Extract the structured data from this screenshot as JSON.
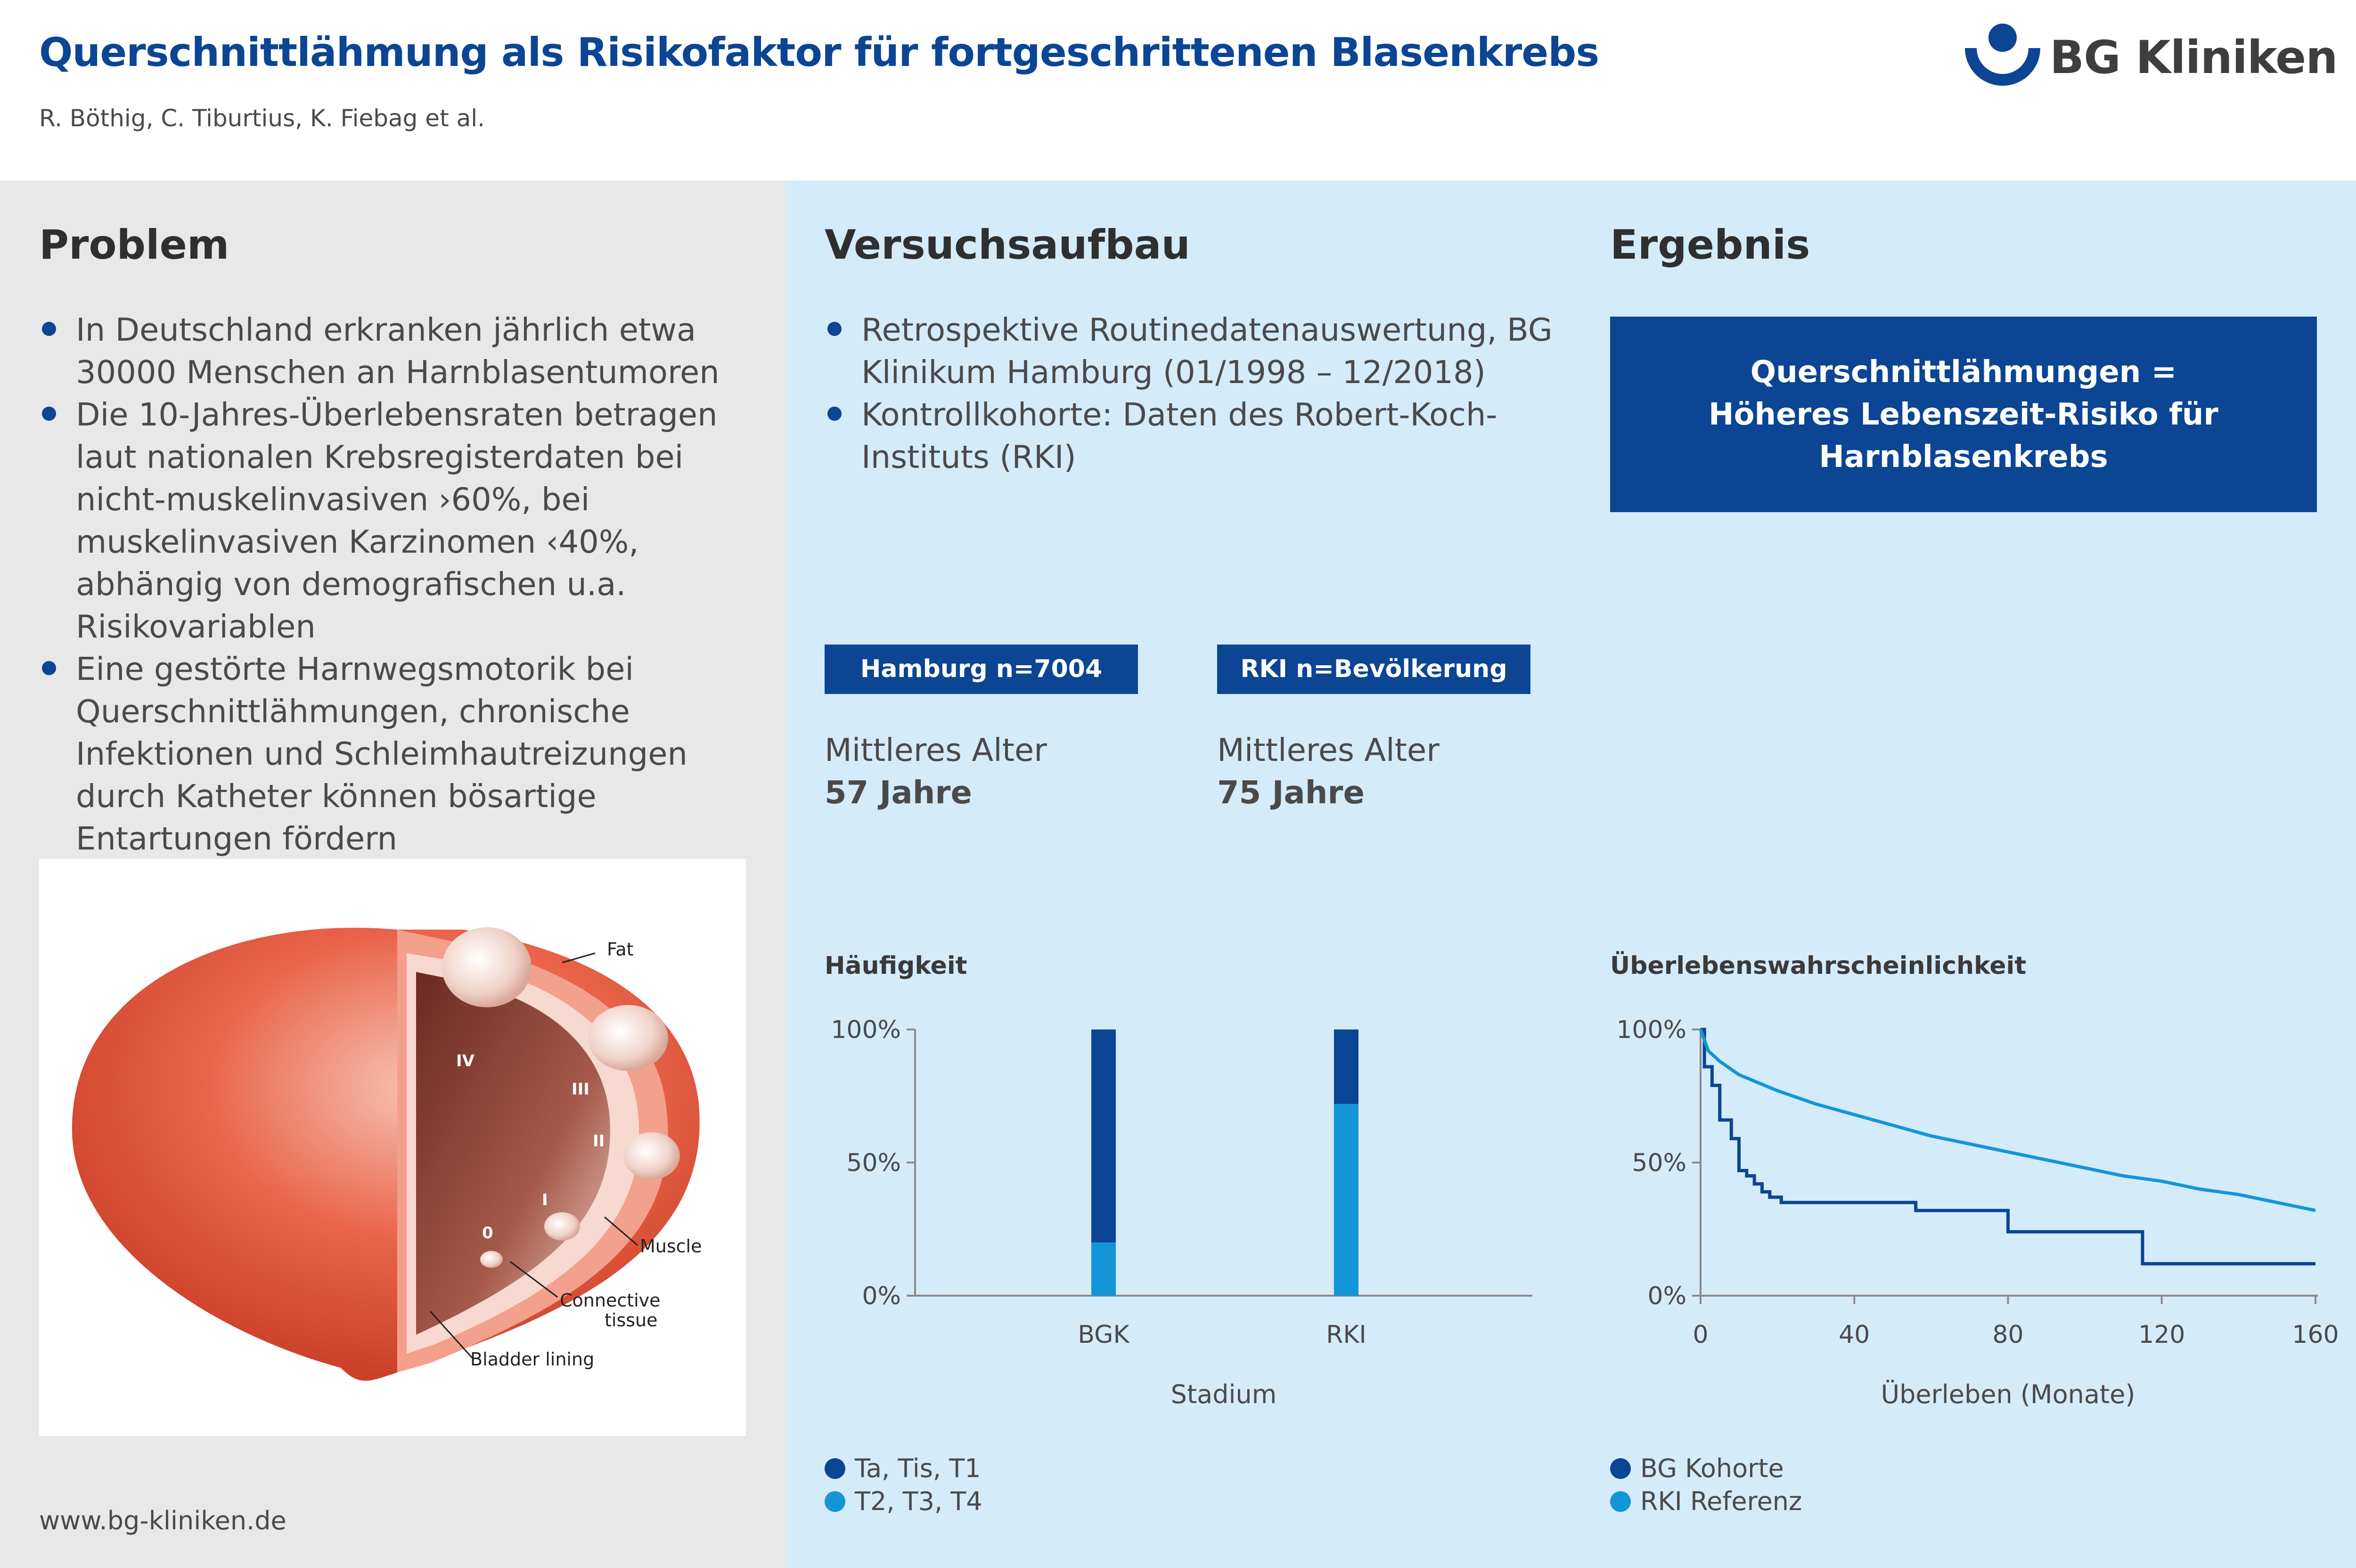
{
  "header": {
    "title": "Querschnittlähmung als Risikofaktor für fortgeschrittenen Blasenkrebs",
    "authors": "R. Böthig, C. Tiburtius, K. Fiebag et al.",
    "logo_text": "BG Kliniken"
  },
  "problem": {
    "title": "Problem",
    "bullets": [
      "In Deutschland erkranken jährlich etwa 30000 Menschen an Harnblasentumoren",
      "Die 10-Jahres-Überlebensraten betragen laut nationalen Krebsregisterdaten bei nicht-muskelinvasiven ›60%, bei muskelinvasiven Karzinomen ‹40%, abhängig von demografischen u.a. Risikovariablen",
      "Eine gestörte Harnwegsmotorik bei Querschnittlähmungen, chronische Infektionen und Schleimhautreizungen durch Katheter können bösartige Entartungen fördern"
    ],
    "illustration_labels": {
      "fat": "Fat",
      "muscle": "Muscle",
      "connective_tissue_1": "Connective",
      "connective_tissue_2": "tissue",
      "bladder_lining": "Bladder lining",
      "stage_iv": "IV",
      "stage_iii": "III",
      "stage_ii": "II",
      "stage_i": "I",
      "stage_0": "0"
    },
    "website": "www.bg-kliniken.de"
  },
  "setup": {
    "title": "Versuchsaufbau",
    "bullets": [
      "Retrospektive Routinedatenauswertung, BG Klinikum Hamburg (01/1998 – 12/2018)",
      "Kontrollkohorte: Daten des Robert-Koch-Instituts (RKI)"
    ],
    "groups": [
      {
        "tag": "Hamburg n=7004",
        "age_label": "Mittleres Alter",
        "age_value": "57 Jahre"
      },
      {
        "tag": "RKI n=Bevölkerung",
        "age_label": "Mittleres Alter",
        "age_value": "75 Jahre"
      }
    ]
  },
  "result": {
    "title": "Ergebnis",
    "box_lines": [
      "Querschnittlähmungen =",
      "Höheres Lebenszeit-Risiko für",
      "Harnblasenkrebs"
    ]
  },
  "colors": {
    "dark_blue": "#0b4593",
    "light_blue": "#1495d8",
    "panel_grey": "#e8e8e8",
    "panel_blue": "#d4ebfa"
  },
  "chart_data": [
    {
      "type": "bar",
      "stacked": true,
      "title": "Häufigkeit",
      "xlabel": "Stadium",
      "ylabel": "",
      "ylim": [
        0,
        100
      ],
      "yticks": [
        "0%",
        "50%",
        "100%"
      ],
      "categories": [
        "BGK",
        "RKI"
      ],
      "series": [
        {
          "name": "T2, T3, T4",
          "color": "#1495d8",
          "values": [
            20,
            72
          ]
        },
        {
          "name": "Ta, Tis, T1",
          "color": "#0b4593",
          "values": [
            80,
            28
          ]
        }
      ],
      "legend_placement": "bottom-left",
      "legend_order": [
        "Ta, Tis, T1",
        "T2, T3, T4"
      ]
    },
    {
      "type": "line",
      "title": "Überlebenswahrscheinlichkeit",
      "xlabel": "Überleben (Monate)",
      "ylabel": "",
      "xlim": [
        0,
        160
      ],
      "ylim": [
        0,
        100
      ],
      "xticks": [
        "0",
        "40",
        "80",
        "120",
        "160"
      ],
      "yticks": [
        "0%",
        "50%",
        "100%"
      ],
      "series": [
        {
          "name": "BG Kohorte",
          "color": "#0b4593",
          "step": true,
          "x": [
            0,
            1,
            3,
            5,
            8,
            10,
            12,
            14,
            16,
            18,
            21,
            56,
            80,
            115,
            160
          ],
          "y": [
            100,
            86,
            79,
            66,
            59,
            47,
            45,
            42,
            39,
            37,
            35,
            32,
            24,
            12,
            12
          ]
        },
        {
          "name": "RKI Referenz",
          "color": "#1495d8",
          "step": false,
          "x": [
            0,
            2,
            5,
            10,
            20,
            30,
            40,
            50,
            60,
            70,
            80,
            90,
            100,
            110,
            120,
            130,
            140,
            150,
            160
          ],
          "y": [
            100,
            92,
            88,
            83,
            77,
            72,
            68,
            64,
            60,
            57,
            54,
            51,
            48,
            45,
            43,
            40,
            38,
            35,
            32
          ]
        }
      ],
      "legend_placement": "bottom-left"
    }
  ]
}
